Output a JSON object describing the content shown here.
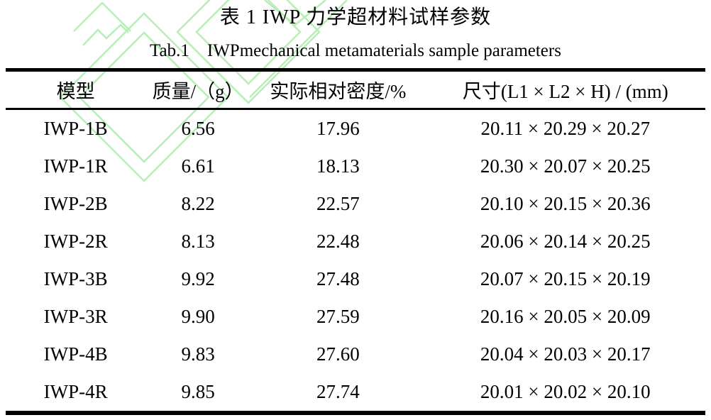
{
  "captions": {
    "zh": "表 1 IWP 力学超材料试样参数",
    "en": "Tab.1 IWPmechanical metamaterials sample parameters"
  },
  "table": {
    "columns": [
      "模型",
      "质量/（g）",
      "实际相对密度/%",
      "尺寸(L1 × L2 × H) / (mm)"
    ],
    "rows": [
      [
        "IWP-1B",
        "6.56",
        "17.96",
        "20.11 × 20.29 × 20.27"
      ],
      [
        "IWP-1R",
        "6.61",
        "18.13",
        "20.30 × 20.07 × 20.25"
      ],
      [
        "IWP-2B",
        "8.22",
        "22.57",
        "20.10 × 20.15 × 20.36"
      ],
      [
        "IWP-2R",
        "8.13",
        "22.48",
        "20.06 × 20.14 × 20.25"
      ],
      [
        "IWP-3B",
        "9.92",
        "27.48",
        "20.07 × 20.15 × 20.19"
      ],
      [
        "IWP-3R",
        "9.90",
        "27.59",
        "20.16 × 20.05 × 20.09"
      ],
      [
        "IWP-4B",
        "9.83",
        "27.60",
        "20.04 × 20.03 × 20.17"
      ],
      [
        "IWP-4R",
        "9.85",
        "27.74",
        "20.01 × 20.02 × 20.10"
      ]
    ]
  },
  "watermark": {
    "color": "#b6eeb6"
  }
}
